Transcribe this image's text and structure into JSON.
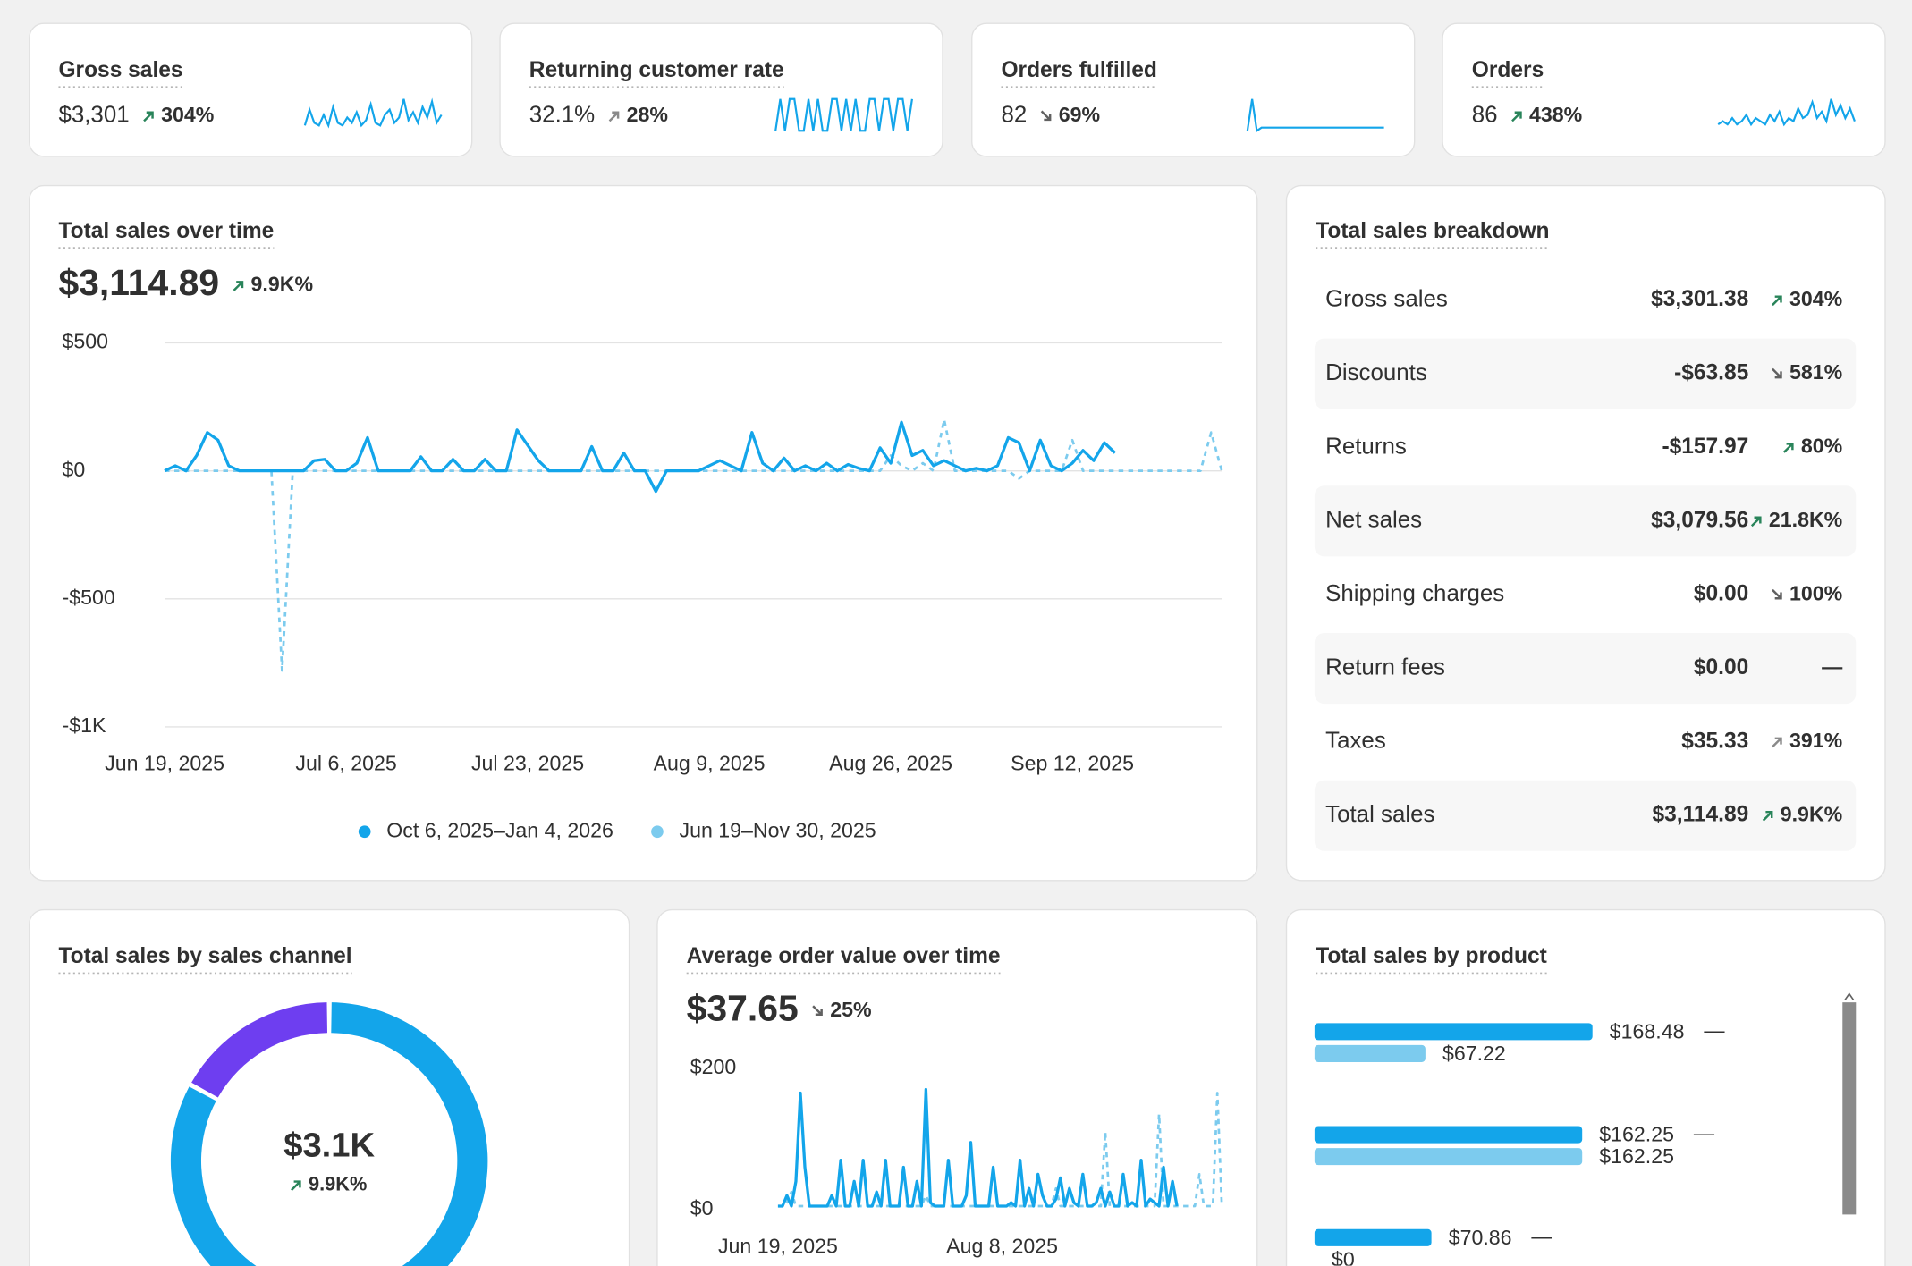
{
  "metrics": [
    {
      "label": "Gross sales",
      "value": "$3,301",
      "change": "304%",
      "direction": "up",
      "change_color": "#29845a",
      "sparkline": [
        2,
        8,
        3,
        2,
        6,
        2,
        9,
        3,
        2,
        5,
        3,
        7,
        2,
        4,
        10,
        3,
        2,
        6,
        8,
        3,
        5,
        12,
        4,
        7,
        3,
        9,
        5,
        11,
        3,
        6
      ]
    },
    {
      "label": "Returning customer rate",
      "value": "32.1%",
      "change": "28%",
      "direction": "up",
      "change_color": "#8a8a8a",
      "sparkline": [
        0,
        10,
        0,
        10,
        10,
        0,
        0,
        10,
        0,
        10,
        0,
        0,
        10,
        10,
        0,
        10,
        0,
        10,
        0,
        0,
        10,
        10,
        0,
        10,
        10,
        0,
        10,
        10,
        0,
        10
      ]
    },
    {
      "label": "Orders fulfilled",
      "value": "82",
      "change": "69%",
      "direction": "down",
      "change_color": "#616161",
      "sparkline": [
        0,
        10,
        0,
        1,
        1,
        1,
        1,
        1,
        1,
        1,
        1,
        1,
        1,
        1,
        1,
        1,
        1,
        1,
        1,
        1,
        1,
        1,
        1,
        1,
        1,
        1,
        1,
        1,
        1,
        1
      ]
    },
    {
      "label": "Orders",
      "value": "86",
      "change": "438%",
      "direction": "up",
      "change_color": "#29845a",
      "sparkline": [
        2,
        3,
        2,
        4,
        2,
        3,
        5,
        2,
        4,
        3,
        2,
        5,
        3,
        6,
        2,
        4,
        3,
        7,
        4,
        5,
        9,
        4,
        6,
        3,
        10,
        5,
        8,
        4,
        7,
        3
      ]
    }
  ],
  "breakdown": {
    "title": "Total sales breakdown",
    "rows": [
      {
        "name": "Gross sales",
        "value": "$3,301.38",
        "change": "304%",
        "direction": "up",
        "change_color": "#29845a"
      },
      {
        "name": "Discounts",
        "value": "-$63.85",
        "change": "581%",
        "direction": "down",
        "change_color": "#616161"
      },
      {
        "name": "Returns",
        "value": "-$157.97",
        "change": "80%",
        "direction": "up",
        "change_color": "#29845a"
      },
      {
        "name": "Net sales",
        "value": "$3,079.56",
        "change": "21.8K%",
        "direction": "up",
        "change_color": "#29845a"
      },
      {
        "name": "Shipping charges",
        "value": "$0.00",
        "change": "100%",
        "direction": "down",
        "change_color": "#616161"
      },
      {
        "name": "Return fees",
        "value": "$0.00",
        "change": "—",
        "change_color": "#8a8a8a"
      },
      {
        "name": "Taxes",
        "value": "$35.33",
        "change": "391%",
        "direction": "up",
        "change_color": "#8a8a8a"
      },
      {
        "name": "Total sales",
        "value": "$3,114.89",
        "change": "9.9K%",
        "direction": "up",
        "change_color": "#29845a"
      }
    ]
  },
  "chart_data": [
    {
      "type": "line",
      "title": "Total sales over time",
      "total": "$3,114.89",
      "change": "9.9K%",
      "direction": "up",
      "change_color": "#29845a",
      "categories": [
        "Jun 19, 2025",
        null,
        null,
        null,
        null,
        null,
        null,
        null,
        null,
        null,
        null,
        null,
        null,
        null,
        null,
        null,
        null,
        "Jul 6, 2025",
        null,
        null,
        null,
        null,
        null,
        null,
        null,
        null,
        null,
        null,
        null,
        null,
        null,
        null,
        null,
        null,
        "Jul 23, 2025",
        null,
        null,
        null,
        null,
        null,
        null,
        null,
        null,
        null,
        null,
        null,
        null,
        null,
        null,
        null,
        null,
        "Aug 9, 2025",
        null,
        null,
        null,
        null,
        null,
        null,
        null,
        null,
        null,
        null,
        null,
        null,
        null,
        null,
        null,
        null,
        "Aug 26, 2025",
        null,
        null,
        null,
        null,
        null,
        null,
        null,
        null,
        null,
        null,
        null,
        null,
        null,
        null,
        null,
        null,
        "Sep 12, 2025",
        null,
        null,
        null,
        null,
        null,
        null,
        null,
        null,
        null,
        null,
        null,
        null,
        null,
        null
      ],
      "ylim": [
        -1000,
        500
      ],
      "yticks": [
        {
          "value": 500,
          "label": "$500"
        },
        {
          "value": 0,
          "label": "$0"
        },
        {
          "value": -500,
          "label": "-$500"
        },
        {
          "value": -1000,
          "label": "-$1K"
        }
      ],
      "grid": true,
      "series": [
        {
          "name": "Oct 6, 2025–Jan 4, 2026",
          "color": "#13a5ea",
          "style": "solid",
          "values": [
            0,
            20,
            0,
            60,
            150,
            120,
            20,
            0,
            0,
            0,
            0,
            0,
            0,
            0,
            40,
            45,
            0,
            0,
            30,
            130,
            0,
            0,
            0,
            0,
            55,
            0,
            0,
            45,
            0,
            0,
            45,
            0,
            0,
            160,
            100,
            40,
            0,
            0,
            0,
            0,
            95,
            0,
            0,
            70,
            0,
            0,
            -80,
            0,
            0,
            0,
            0,
            20,
            40,
            20,
            0,
            150,
            30,
            0,
            50,
            0,
            20,
            0,
            30,
            0,
            25,
            10,
            0,
            90,
            30,
            190,
            60,
            80,
            20,
            40,
            20,
            0,
            10,
            0,
            20,
            130,
            110,
            0,
            120,
            20,
            0,
            30,
            80,
            40,
            110,
            70,
            null,
            null,
            null,
            null,
            null,
            null,
            null,
            null,
            null,
            null
          ]
        },
        {
          "name": "Jun 19–Nov 30, 2025",
          "color": "#7ccbee",
          "style": "dashed",
          "values": [
            0,
            0,
            0,
            0,
            0,
            0,
            0,
            0,
            0,
            0,
            0,
            -780,
            0,
            0,
            0,
            0,
            0,
            0,
            0,
            0,
            0,
            0,
            0,
            0,
            0,
            0,
            0,
            0,
            0,
            0,
            0,
            0,
            0,
            0,
            0,
            0,
            0,
            0,
            0,
            0,
            0,
            0,
            0,
            0,
            0,
            0,
            0,
            0,
            0,
            0,
            0,
            0,
            0,
            0,
            0,
            0,
            0,
            0,
            0,
            0,
            0,
            0,
            0,
            0,
            0,
            0,
            0,
            0,
            60,
            20,
            0,
            30,
            0,
            200,
            0,
            0,
            0,
            0,
            0,
            0,
            -30,
            0,
            0,
            0,
            0,
            120,
            0,
            0,
            0,
            0,
            0,
            0,
            0,
            0,
            0,
            0,
            0,
            0,
            150,
            0
          ]
        }
      ]
    },
    {
      "type": "pie",
      "title": "Total sales by sales channel",
      "total": "$3.1K",
      "change": "9.9K%",
      "direction": "up",
      "change_color": "#29845a",
      "values": [
        83,
        17
      ],
      "colors": [
        "#13a5ea",
        "#6e3ef0"
      ]
    },
    {
      "type": "line",
      "title": "Average order value over time",
      "total": "$37.65",
      "change": "25%",
      "direction": "down",
      "change_color": "#616161",
      "categories": [
        "Jun 19, 2025",
        null,
        null,
        null,
        null,
        null,
        null,
        null,
        null,
        null,
        null,
        null,
        null,
        null,
        null,
        null,
        null,
        null,
        null,
        null,
        null,
        null,
        null,
        null,
        null,
        null,
        null,
        null,
        null,
        null,
        null,
        null,
        null,
        null,
        null,
        null,
        null,
        null,
        null,
        null,
        null,
        null,
        null,
        null,
        null,
        null,
        null,
        null,
        null,
        null,
        "Aug 8, 2025",
        null,
        null,
        null,
        null,
        null,
        null,
        null,
        null,
        null,
        null,
        null,
        null,
        null,
        null,
        null,
        null,
        null,
        null,
        null,
        null,
        null,
        null,
        null,
        null,
        null,
        null,
        null,
        null,
        null,
        null,
        null,
        null,
        null,
        null,
        null,
        null,
        null,
        null,
        null,
        null,
        null,
        null,
        null,
        null,
        null,
        null,
        null,
        null,
        null
      ],
      "ylim": [
        0,
        200
      ],
      "yticks": [
        {
          "value": 0,
          "label": "$0"
        },
        {
          "value": 200,
          "label": "$200"
        }
      ],
      "grid": false,
      "series": [
        {
          "name": "Oct 6, 2025–Jan 4, 2026",
          "color": "#13a5ea",
          "style": "solid",
          "values": [
            5,
            5,
            20,
            5,
            40,
            165,
            60,
            5,
            5,
            5,
            5,
            5,
            20,
            5,
            70,
            5,
            5,
            40,
            5,
            70,
            5,
            5,
            25,
            5,
            70,
            5,
            5,
            5,
            60,
            5,
            5,
            40,
            5,
            170,
            10,
            5,
            5,
            5,
            70,
            5,
            5,
            5,
            20,
            95,
            5,
            5,
            5,
            5,
            60,
            5,
            5,
            5,
            10,
            5,
            70,
            5,
            30,
            5,
            50,
            20,
            5,
            5,
            15,
            45,
            5,
            30,
            10,
            5,
            50,
            5,
            5,
            10,
            30,
            5,
            25,
            5,
            5,
            50,
            5,
            10,
            5,
            70,
            5,
            15,
            10,
            5,
            60,
            5,
            40,
            5,
            null,
            null,
            null,
            null,
            null,
            null,
            null,
            null,
            null,
            null
          ]
        },
        {
          "name": "Jun 19–Nov 30, 2025",
          "color": "#7ccbee",
          "style": "dashed",
          "values": [
            5,
            5,
            10,
            25,
            5,
            5,
            5,
            5,
            5,
            5,
            5,
            5,
            5,
            5,
            5,
            5,
            5,
            5,
            5,
            5,
            5,
            5,
            5,
            5,
            5,
            5,
            5,
            5,
            5,
            5,
            5,
            5,
            5,
            20,
            5,
            5,
            5,
            5,
            5,
            5,
            5,
            5,
            5,
            5,
            5,
            5,
            5,
            5,
            5,
            5,
            5,
            5,
            5,
            5,
            5,
            5,
            5,
            5,
            5,
            5,
            5,
            5,
            30,
            5,
            5,
            5,
            5,
            5,
            5,
            5,
            5,
            5,
            5,
            110,
            5,
            5,
            5,
            5,
            5,
            5,
            5,
            5,
            5,
            5,
            5,
            135,
            5,
            5,
            5,
            5,
            5,
            5,
            5,
            5,
            50,
            5,
            5,
            5,
            165,
            5
          ]
        }
      ]
    },
    {
      "type": "bar",
      "title": "Total sales by product",
      "orientation": "horizontal",
      "changes": [
        "—",
        "—",
        "—"
      ],
      "series": [
        {
          "color": "#13a5ea",
          "values": [
            168.48,
            162.25,
            70.86
          ],
          "value_labels": [
            "$168.48",
            "$162.25",
            "$70.86"
          ]
        },
        {
          "color": "#7ccbee",
          "values": [
            67.22,
            162.25,
            0
          ],
          "value_labels": [
            "$67.22",
            "$162.25",
            "$0"
          ]
        }
      ]
    }
  ]
}
